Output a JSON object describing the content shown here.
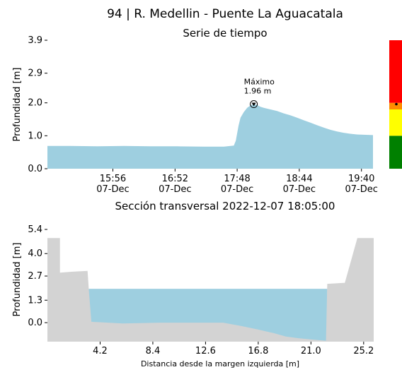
{
  "title": "94 | R. Medellin - Puente La Aguacatala",
  "chart_data": [
    {
      "type": "area",
      "title": "Serie de tiempo",
      "ylabel": "Profundidad [m]",
      "xlabel": "",
      "ylim": [
        0,
        3.9
      ],
      "yticks": [
        "0.0",
        "1.0",
        "2.0",
        "2.9",
        "3.9"
      ],
      "ytick_values": [
        0,
        1.0,
        2.0,
        2.9,
        3.9
      ],
      "xticks": [
        {
          "time": "15:56",
          "date": "07-Dec",
          "hour": 15.933
        },
        {
          "time": "16:52",
          "date": "07-Dec",
          "hour": 16.867
        },
        {
          "time": "17:48",
          "date": "07-Dec",
          "hour": 17.8
        },
        {
          "time": "18:44",
          "date": "07-Dec",
          "hour": 18.733
        },
        {
          "time": "19:40",
          "date": "07-Dec",
          "hour": 19.667
        }
      ],
      "xlim_hour": [
        14.95,
        19.84
      ],
      "x_hour": [
        14.95,
        15.3,
        15.7,
        16.1,
        16.5,
        16.9,
        17.3,
        17.6,
        17.75,
        17.78,
        17.82,
        17.85,
        17.9,
        17.95,
        18.0,
        18.05,
        18.1,
        18.15,
        18.2,
        18.3,
        18.4,
        18.5,
        18.6,
        18.7,
        18.8,
        18.9,
        19.0,
        19.1,
        19.2,
        19.3,
        19.4,
        19.5,
        19.6,
        19.7,
        19.84
      ],
      "values": [
        0.69,
        0.69,
        0.68,
        0.69,
        0.68,
        0.68,
        0.67,
        0.67,
        0.7,
        0.85,
        1.3,
        1.55,
        1.72,
        1.85,
        1.92,
        1.96,
        1.93,
        1.88,
        1.85,
        1.8,
        1.75,
        1.68,
        1.62,
        1.55,
        1.47,
        1.4,
        1.32,
        1.25,
        1.18,
        1.13,
        1.09,
        1.06,
        1.04,
        1.03,
        1.02
      ],
      "annotation": {
        "label": "Máximo",
        "value_label": "1.96 m",
        "x_hour": 18.05,
        "y": 1.96
      },
      "fill_color": "#9ecfe0",
      "level_bar": {
        "colors": [
          "#008000",
          "#ffff00",
          "#ff8c00",
          "#ff0000"
        ],
        "thresholds": [
          0,
          1.0,
          1.8,
          2.0,
          3.9
        ],
        "marker_value": 1.96
      }
    },
    {
      "type": "area",
      "title": "Sección transversal 2022-12-07 18:05:00",
      "xlabel": "Distancia desde la margen izquierda [m]",
      "ylabel": "Profundidad [m]",
      "xlim": [
        0,
        26.0
      ],
      "ylim": [
        -1.1,
        5.4
      ],
      "xticks": [
        "4.2",
        "8.4",
        "12.6",
        "16.8",
        "21.0",
        "25.2"
      ],
      "xtick_values": [
        4.2,
        8.4,
        12.6,
        16.8,
        21.0,
        25.2
      ],
      "yticks": [
        "0.0",
        "1.3",
        "2.7",
        "4.0",
        "5.4"
      ],
      "ytick_values": [
        0,
        1.3,
        2.7,
        4.0,
        5.4
      ],
      "water_level": 1.96,
      "water_color": "#9ecfe0",
      "ground_color": "#d3d3d3",
      "profile_x": [
        0,
        1.0,
        1.0,
        2.0,
        3.2,
        3.3,
        3.5,
        6.0,
        9.0,
        12.0,
        14.0,
        15.5,
        16.8,
        18.0,
        19.0,
        20.0,
        21.5,
        22.2,
        22.3,
        23.6,
        23.7,
        24.7,
        24.7,
        26.0
      ],
      "profile_y": [
        4.9,
        4.9,
        2.9,
        2.95,
        3.0,
        1.9,
        0.05,
        -0.05,
        0.0,
        0.0,
        0.0,
        -0.2,
        -0.4,
        -0.6,
        -0.8,
        -0.9,
        -1.0,
        -1.05,
        2.25,
        2.3,
        2.3,
        4.9,
        4.9,
        4.9
      ]
    }
  ]
}
